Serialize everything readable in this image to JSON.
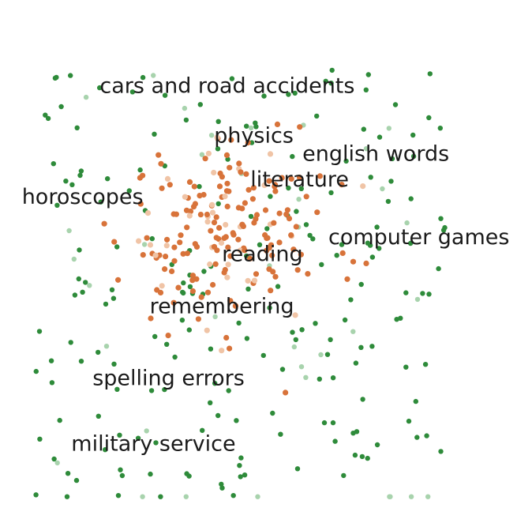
{
  "chart_data": {
    "type": "scatter",
    "title": "",
    "xlabel": "",
    "ylabel": "",
    "grid": false,
    "axes_visible": false,
    "xlim": [
      0,
      100
    ],
    "ylim": [
      0,
      100
    ],
    "series": [
      {
        "color": "#d8733a",
        "light_color": "#f0c4a6",
        "points_count": 190,
        "spread_x": 9.5,
        "spread_y": 9,
        "center": [
          41,
          55
        ]
      },
      {
        "color": "#2e8b3a",
        "light_color": "#a8d3ad",
        "points_count": 240,
        "spread_x": 22,
        "spread_y": 26,
        "center": [
          45,
          42
        ]
      }
    ],
    "annotations": [
      {
        "text": "cars and road accidents",
        "x": 18,
        "y": 82.5
      },
      {
        "text": "physics",
        "x": 40,
        "y": 72.5
      },
      {
        "text": "english words",
        "x": 57,
        "y": 68.8
      },
      {
        "text": "literature",
        "x": 47,
        "y": 63.6
      },
      {
        "text": "horoscopes",
        "x": 3,
        "y": 60.1
      },
      {
        "text": "computer games",
        "x": 62,
        "y": 52
      },
      {
        "text": "reading",
        "x": 41.5,
        "y": 48.6
      },
      {
        "text": "remembering",
        "x": 27.6,
        "y": 38
      },
      {
        "text": "spelling errors",
        "x": 16.6,
        "y": 23.5
      },
      {
        "text": "military service",
        "x": 12.5,
        "y": 10.3
      }
    ]
  }
}
